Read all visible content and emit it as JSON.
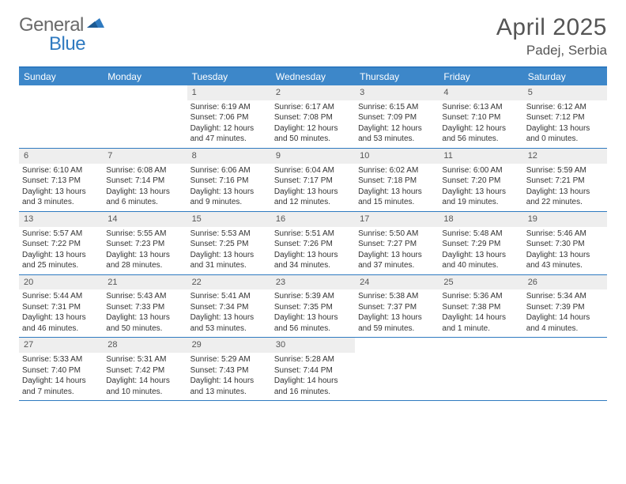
{
  "logo": {
    "part1": "General",
    "part2": "Blue"
  },
  "title": {
    "month": "April 2025",
    "location": "Padej, Serbia"
  },
  "colors": {
    "header_bar": "#3d87c9",
    "border": "#2f7ac0",
    "daynum_bg": "#eeeeee",
    "logo_gray": "#6a6a6a",
    "logo_blue": "#2f7ac0",
    "text": "#333333"
  },
  "day_names": [
    "Sunday",
    "Monday",
    "Tuesday",
    "Wednesday",
    "Thursday",
    "Friday",
    "Saturday"
  ],
  "weeks": [
    [
      null,
      null,
      {
        "n": "1",
        "sr": "Sunrise: 6:19 AM",
        "ss": "Sunset: 7:06 PM",
        "d1": "Daylight: 12 hours",
        "d2": "and 47 minutes."
      },
      {
        "n": "2",
        "sr": "Sunrise: 6:17 AM",
        "ss": "Sunset: 7:08 PM",
        "d1": "Daylight: 12 hours",
        "d2": "and 50 minutes."
      },
      {
        "n": "3",
        "sr": "Sunrise: 6:15 AM",
        "ss": "Sunset: 7:09 PM",
        "d1": "Daylight: 12 hours",
        "d2": "and 53 minutes."
      },
      {
        "n": "4",
        "sr": "Sunrise: 6:13 AM",
        "ss": "Sunset: 7:10 PM",
        "d1": "Daylight: 12 hours",
        "d2": "and 56 minutes."
      },
      {
        "n": "5",
        "sr": "Sunrise: 6:12 AM",
        "ss": "Sunset: 7:12 PM",
        "d1": "Daylight: 13 hours",
        "d2": "and 0 minutes."
      }
    ],
    [
      {
        "n": "6",
        "sr": "Sunrise: 6:10 AM",
        "ss": "Sunset: 7:13 PM",
        "d1": "Daylight: 13 hours",
        "d2": "and 3 minutes."
      },
      {
        "n": "7",
        "sr": "Sunrise: 6:08 AM",
        "ss": "Sunset: 7:14 PM",
        "d1": "Daylight: 13 hours",
        "d2": "and 6 minutes."
      },
      {
        "n": "8",
        "sr": "Sunrise: 6:06 AM",
        "ss": "Sunset: 7:16 PM",
        "d1": "Daylight: 13 hours",
        "d2": "and 9 minutes."
      },
      {
        "n": "9",
        "sr": "Sunrise: 6:04 AM",
        "ss": "Sunset: 7:17 PM",
        "d1": "Daylight: 13 hours",
        "d2": "and 12 minutes."
      },
      {
        "n": "10",
        "sr": "Sunrise: 6:02 AM",
        "ss": "Sunset: 7:18 PM",
        "d1": "Daylight: 13 hours",
        "d2": "and 15 minutes."
      },
      {
        "n": "11",
        "sr": "Sunrise: 6:00 AM",
        "ss": "Sunset: 7:20 PM",
        "d1": "Daylight: 13 hours",
        "d2": "and 19 minutes."
      },
      {
        "n": "12",
        "sr": "Sunrise: 5:59 AM",
        "ss": "Sunset: 7:21 PM",
        "d1": "Daylight: 13 hours",
        "d2": "and 22 minutes."
      }
    ],
    [
      {
        "n": "13",
        "sr": "Sunrise: 5:57 AM",
        "ss": "Sunset: 7:22 PM",
        "d1": "Daylight: 13 hours",
        "d2": "and 25 minutes."
      },
      {
        "n": "14",
        "sr": "Sunrise: 5:55 AM",
        "ss": "Sunset: 7:23 PM",
        "d1": "Daylight: 13 hours",
        "d2": "and 28 minutes."
      },
      {
        "n": "15",
        "sr": "Sunrise: 5:53 AM",
        "ss": "Sunset: 7:25 PM",
        "d1": "Daylight: 13 hours",
        "d2": "and 31 minutes."
      },
      {
        "n": "16",
        "sr": "Sunrise: 5:51 AM",
        "ss": "Sunset: 7:26 PM",
        "d1": "Daylight: 13 hours",
        "d2": "and 34 minutes."
      },
      {
        "n": "17",
        "sr": "Sunrise: 5:50 AM",
        "ss": "Sunset: 7:27 PM",
        "d1": "Daylight: 13 hours",
        "d2": "and 37 minutes."
      },
      {
        "n": "18",
        "sr": "Sunrise: 5:48 AM",
        "ss": "Sunset: 7:29 PM",
        "d1": "Daylight: 13 hours",
        "d2": "and 40 minutes."
      },
      {
        "n": "19",
        "sr": "Sunrise: 5:46 AM",
        "ss": "Sunset: 7:30 PM",
        "d1": "Daylight: 13 hours",
        "d2": "and 43 minutes."
      }
    ],
    [
      {
        "n": "20",
        "sr": "Sunrise: 5:44 AM",
        "ss": "Sunset: 7:31 PM",
        "d1": "Daylight: 13 hours",
        "d2": "and 46 minutes."
      },
      {
        "n": "21",
        "sr": "Sunrise: 5:43 AM",
        "ss": "Sunset: 7:33 PM",
        "d1": "Daylight: 13 hours",
        "d2": "and 50 minutes."
      },
      {
        "n": "22",
        "sr": "Sunrise: 5:41 AM",
        "ss": "Sunset: 7:34 PM",
        "d1": "Daylight: 13 hours",
        "d2": "and 53 minutes."
      },
      {
        "n": "23",
        "sr": "Sunrise: 5:39 AM",
        "ss": "Sunset: 7:35 PM",
        "d1": "Daylight: 13 hours",
        "d2": "and 56 minutes."
      },
      {
        "n": "24",
        "sr": "Sunrise: 5:38 AM",
        "ss": "Sunset: 7:37 PM",
        "d1": "Daylight: 13 hours",
        "d2": "and 59 minutes."
      },
      {
        "n": "25",
        "sr": "Sunrise: 5:36 AM",
        "ss": "Sunset: 7:38 PM",
        "d1": "Daylight: 14 hours",
        "d2": "and 1 minute."
      },
      {
        "n": "26",
        "sr": "Sunrise: 5:34 AM",
        "ss": "Sunset: 7:39 PM",
        "d1": "Daylight: 14 hours",
        "d2": "and 4 minutes."
      }
    ],
    [
      {
        "n": "27",
        "sr": "Sunrise: 5:33 AM",
        "ss": "Sunset: 7:40 PM",
        "d1": "Daylight: 14 hours",
        "d2": "and 7 minutes."
      },
      {
        "n": "28",
        "sr": "Sunrise: 5:31 AM",
        "ss": "Sunset: 7:42 PM",
        "d1": "Daylight: 14 hours",
        "d2": "and 10 minutes."
      },
      {
        "n": "29",
        "sr": "Sunrise: 5:29 AM",
        "ss": "Sunset: 7:43 PM",
        "d1": "Daylight: 14 hours",
        "d2": "and 13 minutes."
      },
      {
        "n": "30",
        "sr": "Sunrise: 5:28 AM",
        "ss": "Sunset: 7:44 PM",
        "d1": "Daylight: 14 hours",
        "d2": "and 16 minutes."
      },
      null,
      null,
      null
    ]
  ]
}
